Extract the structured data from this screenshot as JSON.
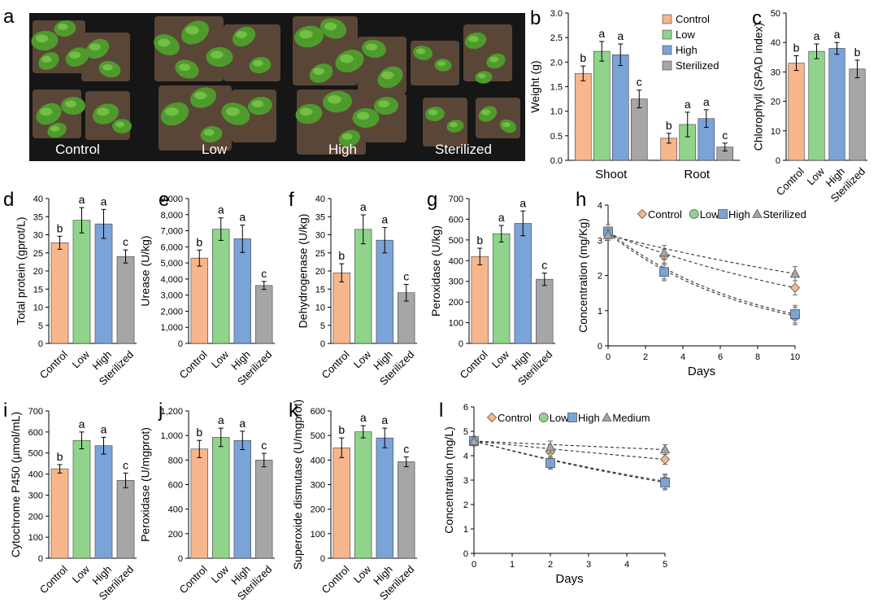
{
  "colors": {
    "Control": "#f7b68b",
    "Low": "#8fd48a",
    "High": "#7aa3d8",
    "Sterilized": "#a6a6a6",
    "Medium": "#a6a6a6",
    "bar_stroke": "#404040",
    "photo_bg": "#161616"
  },
  "panel_a": {
    "letter": "a",
    "captions": [
      "Control",
      "Low",
      "High",
      "Sterilized"
    ]
  },
  "panel_letters": [
    "b",
    "c",
    "d",
    "e",
    "f",
    "g",
    "h",
    "i",
    "j",
    "k",
    "l"
  ],
  "chart_data": [
    {
      "panel": "b",
      "type": "bar",
      "categories": [
        "Shoot",
        "Root"
      ],
      "series": [
        {
          "name": "Control",
          "values": [
            1.77,
            0.45
          ],
          "errors": [
            0.15,
            0.1
          ],
          "sig": [
            "b",
            "b"
          ]
        },
        {
          "name": "Low",
          "values": [
            2.22,
            0.73
          ],
          "errors": [
            0.2,
            0.25
          ],
          "sig": [
            "a",
            "a"
          ]
        },
        {
          "name": "High",
          "values": [
            2.15,
            0.85
          ],
          "errors": [
            0.22,
            0.18
          ],
          "sig": [
            "a",
            "a"
          ]
        },
        {
          "name": "Sterilized",
          "values": [
            1.25,
            0.27
          ],
          "errors": [
            0.18,
            0.08
          ],
          "sig": [
            "c",
            "c"
          ]
        }
      ],
      "ylabel": "Weight (g)",
      "ylim": [
        0,
        3
      ],
      "yticks": [
        "0.0",
        "0.5",
        "1.0",
        "1.5",
        "2.0",
        "2.5",
        "3.0"
      ],
      "legend": "top-right"
    },
    {
      "panel": "c",
      "type": "bar",
      "categories": [
        "Control",
        "Low",
        "High",
        "Sterilized"
      ],
      "values": [
        33,
        37,
        38,
        31
      ],
      "errors": [
        2.5,
        2.5,
        2,
        3
      ],
      "sig": [
        "b",
        "a",
        "a",
        "b"
      ],
      "ylabel": "Chlorophyll (SPAD index)",
      "ylim": [
        0,
        50
      ],
      "yticks": [
        "0",
        "10",
        "20",
        "30",
        "40",
        "50"
      ]
    },
    {
      "panel": "d",
      "type": "bar",
      "categories": [
        "Control",
        "Low",
        "High",
        "Sterilized"
      ],
      "values": [
        27.8,
        34,
        33,
        24
      ],
      "errors": [
        1.8,
        3.5,
        4,
        1.8
      ],
      "sig": [
        "b",
        "a",
        "a",
        "c"
      ],
      "ylabel": "Total protein (gprot/L)",
      "ylim": [
        0,
        40
      ],
      "yticks": [
        "0",
        "5",
        "10",
        "15",
        "20",
        "25",
        "30",
        "35",
        "40"
      ]
    },
    {
      "panel": "e",
      "type": "bar",
      "categories": [
        "Control",
        "Low",
        "High",
        "Sterilized"
      ],
      "values": [
        5300,
        7100,
        6500,
        3600
      ],
      "errors": [
        500,
        700,
        850,
        250
      ],
      "sig": [
        "b",
        "a",
        "a",
        "c"
      ],
      "ylabel": "Urease (U/kg)",
      "ylim": [
        0,
        9000
      ],
      "yticks": [
        "0",
        "1,000",
        "2,000",
        "3,000",
        "4,000",
        "5,000",
        "6,000",
        "7,000",
        "8,000",
        "9,000"
      ]
    },
    {
      "panel": "f",
      "type": "bar",
      "categories": [
        "Control",
        "Low",
        "High",
        "Sterilized"
      ],
      "values": [
        19.5,
        31.5,
        28.5,
        14
      ],
      "errors": [
        2.5,
        4,
        3.5,
        2.3
      ],
      "sig": [
        "b",
        "a",
        "a",
        "c"
      ],
      "ylabel": "Dehydrogenase (U/kg)",
      "ylim": [
        0,
        40
      ],
      "yticks": [
        "0",
        "5",
        "10",
        "15",
        "20",
        "25",
        "30",
        "35",
        "40"
      ]
    },
    {
      "panel": "g",
      "type": "bar",
      "categories": [
        "Control",
        "Low",
        "High",
        "Sterilized"
      ],
      "values": [
        420,
        530,
        580,
        310
      ],
      "errors": [
        40,
        40,
        60,
        30
      ],
      "sig": [
        "b",
        "a",
        "a",
        "c"
      ],
      "ylabel": "Peroxidase (U/kg)",
      "ylim": [
        0,
        700
      ],
      "yticks": [
        "0",
        "100",
        "200",
        "300",
        "400",
        "500",
        "600",
        "700"
      ]
    },
    {
      "panel": "h",
      "type": "line",
      "x": [
        0,
        3,
        10
      ],
      "series": [
        {
          "name": "Control",
          "values": [
            3.2,
            2.55,
            1.65
          ],
          "errors": [
            0.15,
            0.2,
            0.2
          ],
          "marker": "diamond"
        },
        {
          "name": "Low",
          "values": [
            3.2,
            2.1,
            0.85
          ],
          "errors": [
            0.15,
            0.2,
            0.25
          ],
          "marker": "circle"
        },
        {
          "name": "High",
          "values": [
            3.25,
            2.1,
            0.9
          ],
          "errors": [
            0.2,
            0.25,
            0.25
          ],
          "marker": "square"
        },
        {
          "name": "Sterilized",
          "values": [
            3.15,
            2.65,
            2.05
          ],
          "errors": [
            0.15,
            0.2,
            0.2
          ],
          "marker": "triangle"
        }
      ],
      "xlabel": "Days",
      "ylabel": "Concentration (mg/Kg)",
      "xlim": [
        0,
        10
      ],
      "ylim": [
        0,
        4
      ],
      "xticks": [
        "0",
        "2",
        "4",
        "6",
        "8",
        "10"
      ],
      "yticks": [
        "0",
        "1",
        "2",
        "3",
        "4"
      ],
      "legend": "top"
    },
    {
      "panel": "i",
      "type": "bar",
      "categories": [
        "Control",
        "Low",
        "High",
        "Sterilized"
      ],
      "values": [
        425,
        560,
        535,
        370
      ],
      "errors": [
        20,
        40,
        40,
        35
      ],
      "sig": [
        "b",
        "a",
        "a",
        "c"
      ],
      "ylabel": "Cytochrome P450 (μmol/mL)",
      "ylim": [
        0,
        700
      ],
      "yticks": [
        "0",
        "100",
        "200",
        "300",
        "400",
        "500",
        "600",
        "700"
      ]
    },
    {
      "panel": "j",
      "type": "bar",
      "categories": [
        "Control",
        "Low",
        "High",
        "Sterilized"
      ],
      "values": [
        890,
        985,
        960,
        800
      ],
      "errors": [
        70,
        75,
        75,
        55
      ],
      "sig": [
        "b",
        "a",
        "a",
        "c"
      ],
      "ylabel": "Peroxidase (U/mgprot)",
      "ylim": [
        0,
        1200
      ],
      "yticks": [
        "0",
        "200",
        "400",
        "600",
        "800",
        "1,000",
        "1,200"
      ]
    },
    {
      "panel": "k",
      "type": "bar",
      "categories": [
        "Control",
        "Low",
        "High",
        "Sterilized"
      ],
      "values": [
        450,
        515,
        490,
        393
      ],
      "errors": [
        40,
        25,
        40,
        20
      ],
      "sig": [
        "b",
        "a",
        "a",
        "c"
      ],
      "ylabel": "Superoxide dismutase (U/mgprot)",
      "ylim": [
        0,
        600
      ],
      "yticks": [
        "0",
        "100",
        "200",
        "300",
        "400",
        "500",
        "600"
      ]
    },
    {
      "panel": "l",
      "type": "line",
      "x": [
        0,
        2,
        5
      ],
      "series": [
        {
          "name": "Control",
          "values": [
            4.6,
            4.15,
            3.85
          ],
          "errors": [
            0.2,
            0.2,
            0.2
          ],
          "marker": "diamond"
        },
        {
          "name": "Low",
          "values": [
            4.6,
            3.7,
            2.95
          ],
          "errors": [
            0.2,
            0.25,
            0.3
          ],
          "marker": "circle"
        },
        {
          "name": "High",
          "values": [
            4.6,
            3.7,
            2.9
          ],
          "errors": [
            0.2,
            0.2,
            0.3
          ],
          "marker": "square"
        },
        {
          "name": "Medium",
          "values": [
            4.6,
            4.35,
            4.25
          ],
          "errors": [
            0.2,
            0.25,
            0.2
          ],
          "marker": "triangle"
        }
      ],
      "xlabel": "Days",
      "ylabel": "Concentration (mg/L)",
      "xlim": [
        0,
        5
      ],
      "ylim": [
        0,
        6
      ],
      "xticks": [
        "0",
        "1",
        "2",
        "3",
        "4",
        "5"
      ],
      "yticks": [
        "0",
        "1",
        "2",
        "3",
        "4",
        "5",
        "6"
      ],
      "legend": "top"
    }
  ]
}
